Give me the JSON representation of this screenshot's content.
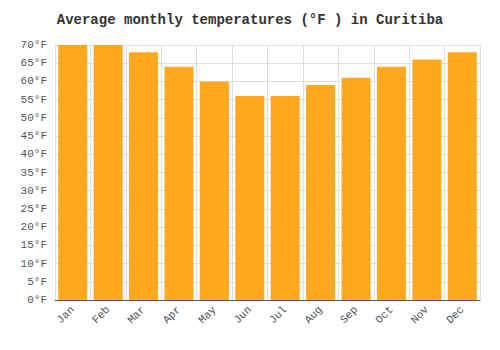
{
  "chart_data": {
    "type": "bar",
    "title": "Average monthly temperatures (°F ) in Curitiba",
    "categories": [
      "Jan",
      "Feb",
      "Mar",
      "Apr",
      "May",
      "Jun",
      "Jul",
      "Aug",
      "Sep",
      "Oct",
      "Nov",
      "Dec"
    ],
    "values": [
      70,
      70,
      68,
      64,
      60,
      56,
      56,
      59,
      61,
      64,
      66,
      68
    ],
    "color": "#FFA820",
    "ylim": [
      0,
      70
    ],
    "yticks": [
      {
        "value": 0,
        "label": "0°F"
      },
      {
        "value": 5,
        "label": "5°F"
      },
      {
        "value": 10,
        "label": "10°F"
      },
      {
        "value": 15,
        "label": "15°F"
      },
      {
        "value": 20,
        "label": "20°F"
      },
      {
        "value": 25,
        "label": "25°F"
      },
      {
        "value": 30,
        "label": "30°F"
      },
      {
        "value": 35,
        "label": "35°F"
      },
      {
        "value": 40,
        "label": "40°F"
      },
      {
        "value": 45,
        "label": "45°F"
      },
      {
        "value": 50,
        "label": "50°F"
      },
      {
        "value": 55,
        "label": "55°F"
      },
      {
        "value": 60,
        "label": "60°F"
      },
      {
        "value": 65,
        "label": "65°F"
      },
      {
        "value": 70,
        "label": "70°F"
      }
    ],
    "grid": true
  }
}
